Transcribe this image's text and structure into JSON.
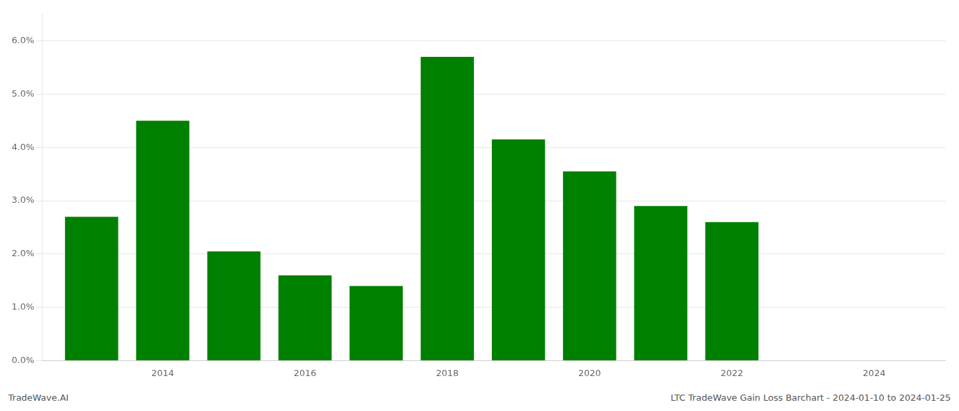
{
  "chart_data": {
    "type": "bar",
    "x": [
      2013,
      2014,
      2015,
      2016,
      2017,
      2018,
      2019,
      2020,
      2021,
      2022
    ],
    "values": [
      0.027,
      0.045,
      0.0205,
      0.016,
      0.014,
      0.057,
      0.0415,
      0.0355,
      0.029,
      0.026
    ],
    "color": "#008000",
    "xlim": [
      2012.3,
      2025.0
    ],
    "xticks": [
      2014,
      2016,
      2018,
      2020,
      2022,
      2024
    ],
    "ylim": [
      0,
      0.065
    ],
    "yticks": [
      {
        "value": 0.0,
        "label": "0.0%"
      },
      {
        "value": 0.01,
        "label": "1.0%"
      },
      {
        "value": 0.02,
        "label": "2.0%"
      },
      {
        "value": 0.03,
        "label": "3.0%"
      },
      {
        "value": 0.04,
        "label": "4.0%"
      },
      {
        "value": 0.05,
        "label": "5.0%"
      },
      {
        "value": 0.06,
        "label": "6.0%"
      }
    ],
    "grid": "y",
    "annotations": [
      "TradeWave.AI",
      "LTC TradeWave Gain Loss Barchart - 2024-01-10 to 2024-01-25"
    ]
  }
}
